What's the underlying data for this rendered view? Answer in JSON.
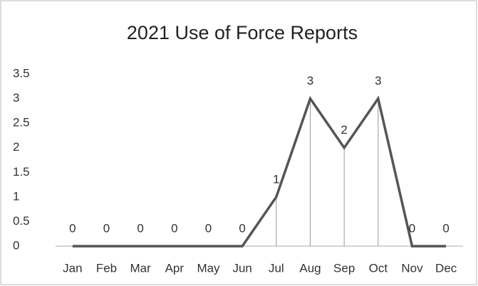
{
  "chart_data": {
    "type": "line",
    "title": "2021 Use of Force Reports",
    "categories": [
      "Jan",
      "Feb",
      "Mar",
      "Apr",
      "May",
      "Jun",
      "Jul",
      "Aug",
      "Sep",
      "Oct",
      "Nov",
      "Dec"
    ],
    "values": [
      0,
      0,
      0,
      0,
      0,
      0,
      1,
      3,
      2,
      3,
      0,
      0
    ],
    "color": "#555555",
    "ylim": [
      0,
      3.5
    ],
    "yticks": [
      0,
      0.5,
      1,
      1.5,
      2,
      2.5,
      3,
      3.5
    ],
    "grid": false,
    "drop_lines": true,
    "data_labels": true
  }
}
